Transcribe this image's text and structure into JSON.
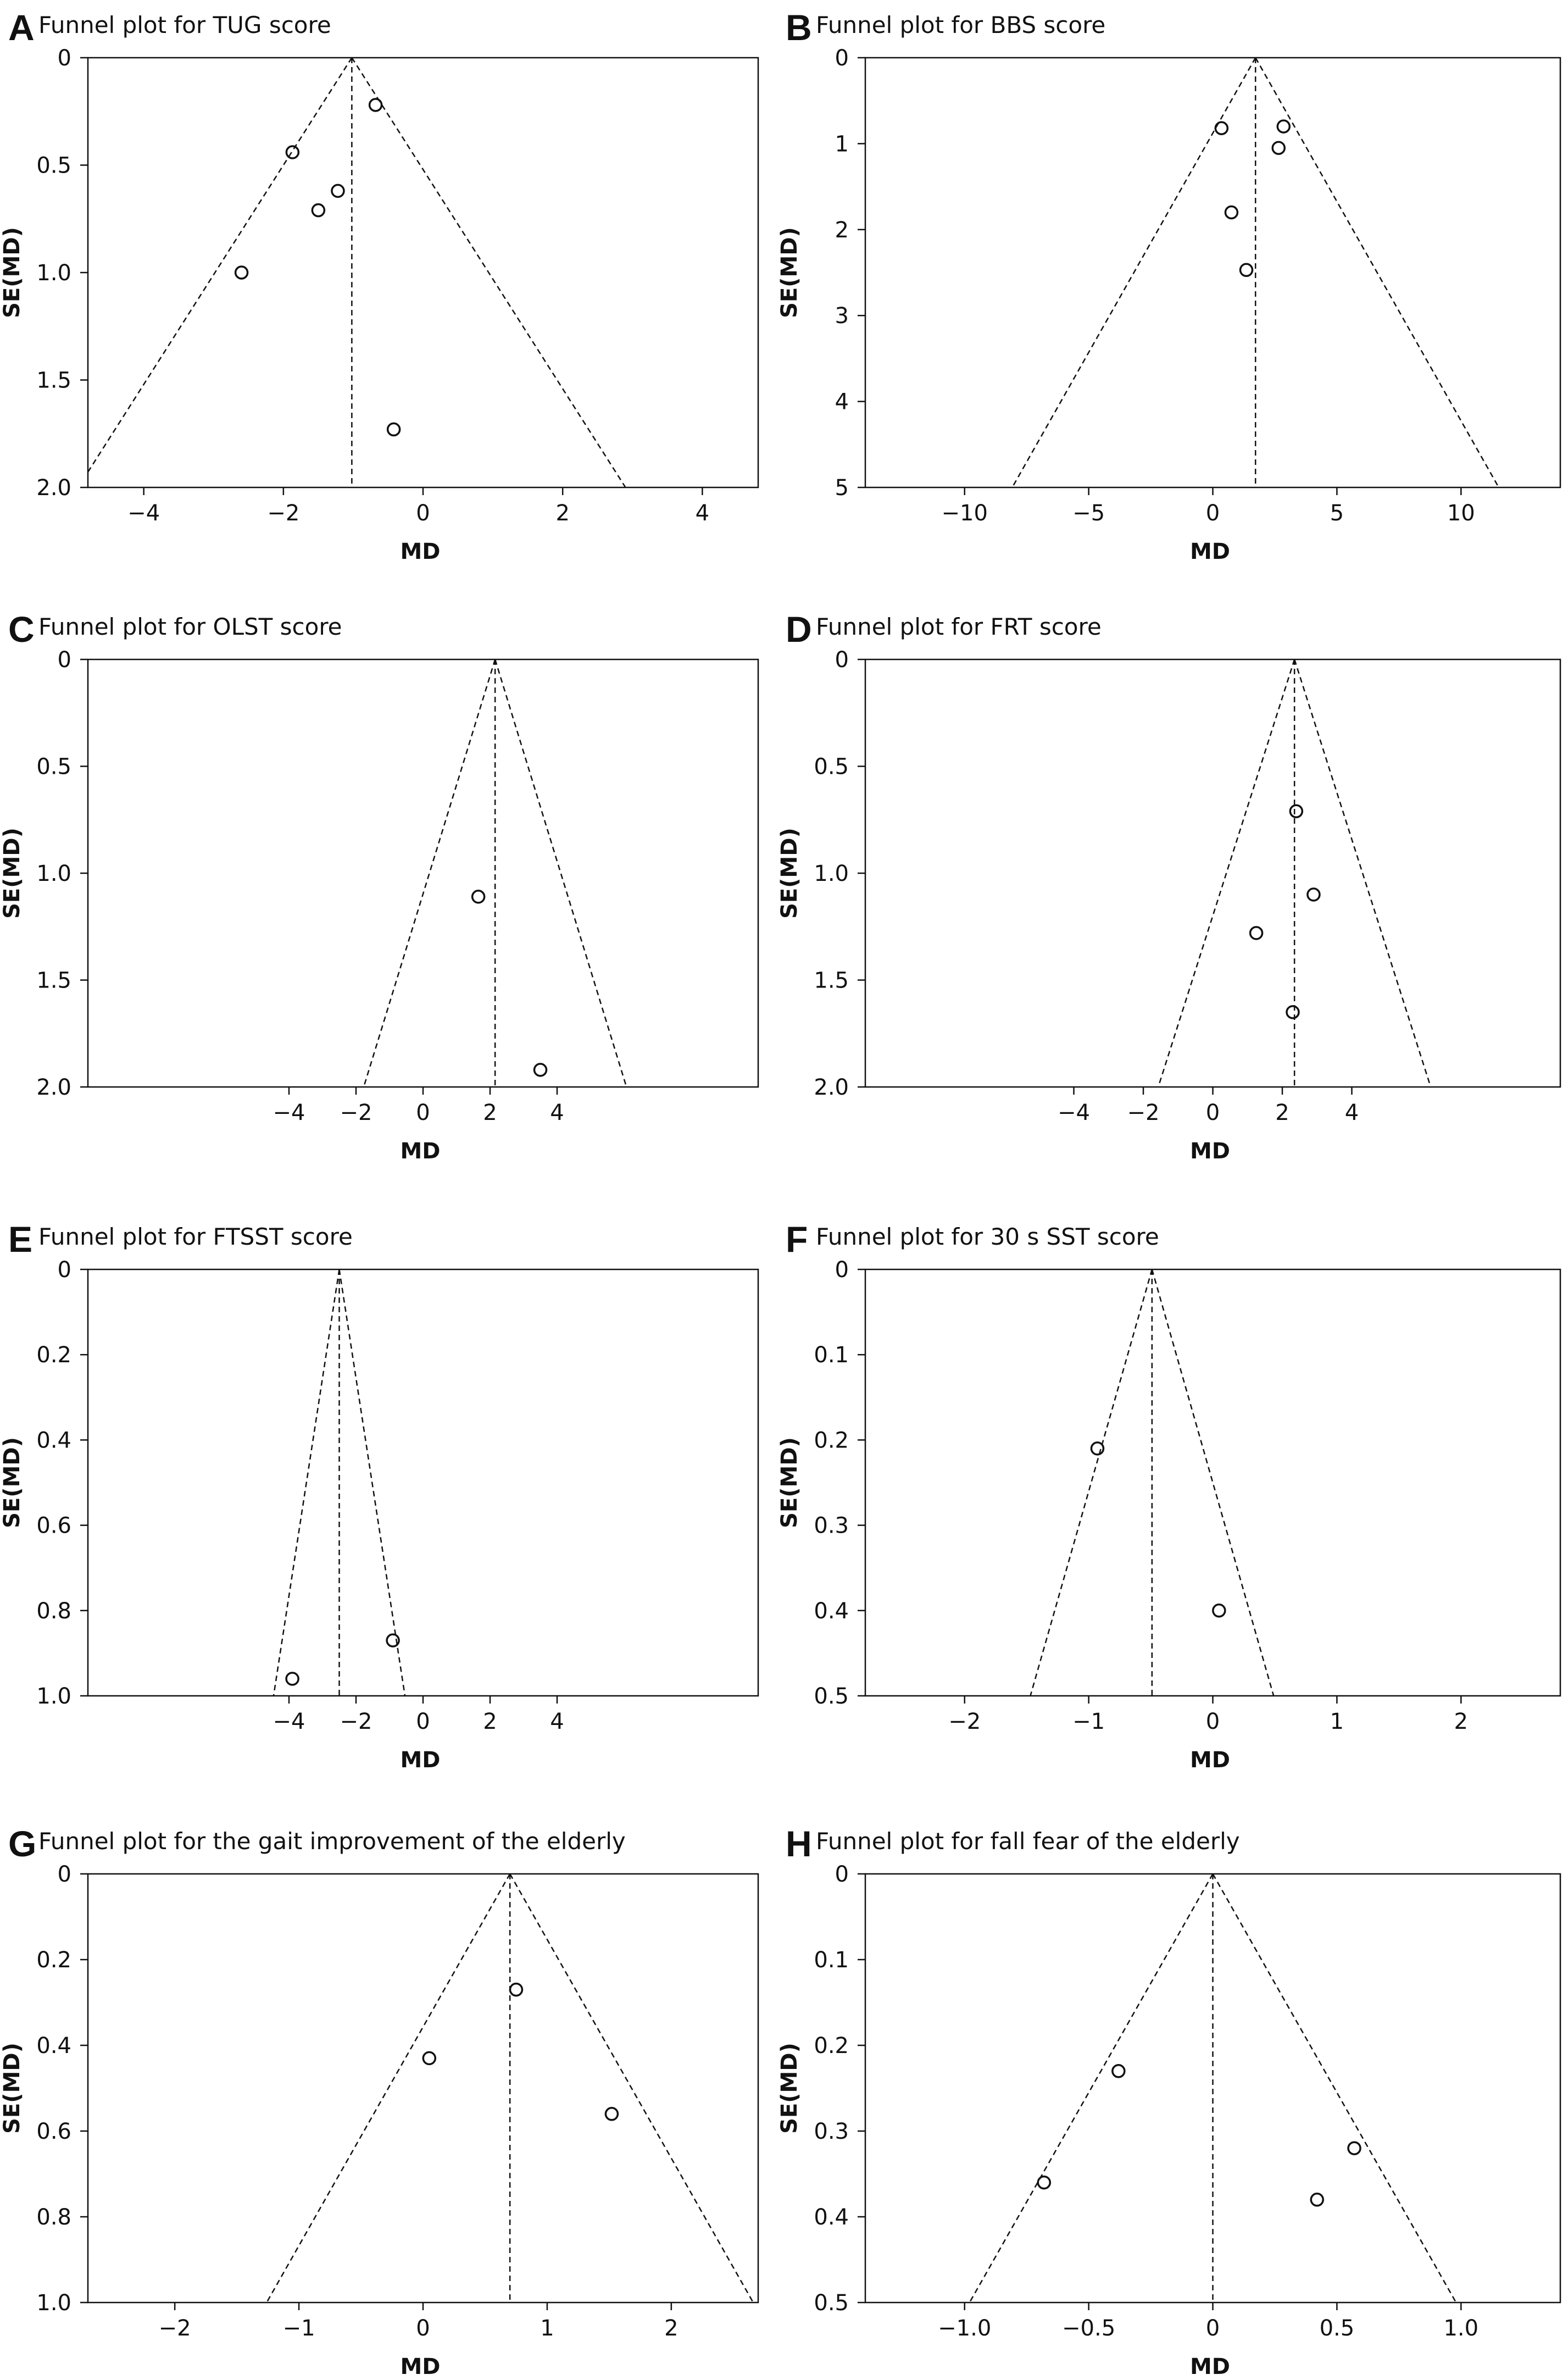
{
  "chart_data": [
    {
      "panel": "A",
      "type": "scatter",
      "title": "Funnel plot for TUG score",
      "xlabel": "MD",
      "ylabel": "SE(MD)",
      "xlim": [
        -4.8,
        4.8
      ],
      "ylim": [
        0,
        2.0
      ],
      "y_reversed": true,
      "xticks": [
        -4,
        -2,
        0,
        2,
        4
      ],
      "yticks": [
        0,
        0.5,
        1.0,
        1.5,
        2.0
      ],
      "ytick_labels": [
        "0",
        "0.5",
        "1.0",
        "1.5",
        "2.0"
      ],
      "xtick_labels": [
        "−4",
        "−2",
        "0",
        "2",
        "4"
      ],
      "center": -1.02,
      "funnel_se_max": 2.0,
      "points": [
        {
          "x": -0.68,
          "y": 0.22
        },
        {
          "x": -1.87,
          "y": 0.44
        },
        {
          "x": -1.22,
          "y": 0.62
        },
        {
          "x": -1.5,
          "y": 0.71
        },
        {
          "x": -2.6,
          "y": 1.0
        },
        {
          "x": -0.42,
          "y": 1.73
        }
      ]
    },
    {
      "panel": "B",
      "type": "scatter",
      "title": "Funnel plot for BBS score",
      "xlabel": "MD",
      "ylabel": "SE(MD)",
      "xlim": [
        -14,
        14
      ],
      "ylim": [
        0,
        5
      ],
      "y_reversed": true,
      "xticks": [
        -10,
        -5,
        0,
        5,
        10
      ],
      "yticks": [
        0,
        1,
        2,
        3,
        4,
        5
      ],
      "ytick_labels": [
        "0",
        "1",
        "2",
        "3",
        "4",
        "5"
      ],
      "xtick_labels": [
        "−10",
        "−5",
        "0",
        "5",
        "10"
      ],
      "center": 1.72,
      "funnel_se_max": 5,
      "points": [
        {
          "x": 0.35,
          "y": 0.82
        },
        {
          "x": 2.85,
          "y": 0.8
        },
        {
          "x": 2.65,
          "y": 1.05
        },
        {
          "x": 0.75,
          "y": 1.8
        },
        {
          "x": 1.35,
          "y": 2.47
        }
      ]
    },
    {
      "panel": "C",
      "type": "scatter",
      "title": "Funnel plot for OLST score",
      "xlabel": "MD",
      "ylabel": "SE(MD)",
      "xlim": [
        -10,
        10
      ],
      "ylim": [
        0,
        2.0
      ],
      "y_reversed": true,
      "xticks": [
        -4,
        -2,
        0,
        2,
        4
      ],
      "yticks": [
        0,
        0.5,
        1.0,
        1.5,
        2.0
      ],
      "ytick_labels": [
        "0",
        "0.5",
        "1.0",
        "1.5",
        "2.0"
      ],
      "xtick_labels": [
        "−4",
        "−2",
        "0",
        "2",
        "4"
      ],
      "center": 2.15,
      "funnel_se_max": 2.0,
      "points": [
        {
          "x": 1.65,
          "y": 1.11
        },
        {
          "x": 3.5,
          "y": 1.92
        }
      ]
    },
    {
      "panel": "D",
      "type": "scatter",
      "title": "Funnel plot for FRT score",
      "xlabel": "MD",
      "ylabel": "SE(MD)",
      "xlim": [
        -10,
        10
      ],
      "ylim": [
        0,
        2.0
      ],
      "y_reversed": true,
      "xticks": [
        -4,
        -2,
        0,
        2,
        4
      ],
      "yticks": [
        0,
        0.5,
        1.0,
        1.5,
        2.0
      ],
      "ytick_labels": [
        "0",
        "0.5",
        "1.0",
        "1.5",
        "2.0"
      ],
      "xtick_labels": [
        "−4",
        "−2",
        "0",
        "2",
        "4"
      ],
      "center": 2.35,
      "funnel_se_max": 2.0,
      "points": [
        {
          "x": 2.4,
          "y": 0.71
        },
        {
          "x": 2.9,
          "y": 1.1
        },
        {
          "x": 1.25,
          "y": 1.28
        },
        {
          "x": 2.3,
          "y": 1.65
        }
      ]
    },
    {
      "panel": "E",
      "type": "scatter",
      "title": "Funnel plot for FTSST score",
      "xlabel": "MD",
      "ylabel": "SE(MD)",
      "xlim": [
        -10,
        10
      ],
      "ylim": [
        0,
        1.0
      ],
      "y_reversed": true,
      "xticks": [
        -4,
        -2,
        0,
        2,
        4
      ],
      "yticks": [
        0,
        0.2,
        0.4,
        0.6,
        0.8,
        1.0
      ],
      "ytick_labels": [
        "0",
        "0.2",
        "0.4",
        "0.6",
        "0.8",
        "1.0"
      ],
      "xtick_labels": [
        "−4",
        "−2",
        "0",
        "2",
        "4"
      ],
      "center": -2.5,
      "funnel_se_max": 1.0,
      "points": [
        {
          "x": -0.9,
          "y": 0.87
        },
        {
          "x": -3.9,
          "y": 0.96
        }
      ]
    },
    {
      "panel": "F",
      "type": "scatter",
      "title": "Funnel plot for 30 s SST score",
      "xlabel": "MD",
      "ylabel": "SE(MD)",
      "xlim": [
        -2.8,
        2.8
      ],
      "ylim": [
        0,
        0.5
      ],
      "y_reversed": true,
      "xticks": [
        -2,
        -1,
        0,
        1,
        2
      ],
      "yticks": [
        0,
        0.1,
        0.2,
        0.3,
        0.4,
        0.5
      ],
      "ytick_labels": [
        "0",
        "0.1",
        "0.2",
        "0.3",
        "0.4",
        "0.5"
      ],
      "xtick_labels": [
        "−2",
        "−1",
        "0",
        "1",
        "2"
      ],
      "center": -0.49,
      "funnel_se_max": 0.5,
      "points": [
        {
          "x": -0.93,
          "y": 0.21
        },
        {
          "x": 0.05,
          "y": 0.4
        }
      ]
    },
    {
      "panel": "G",
      "type": "scatter",
      "title": "Funnel plot for the gait improvement of the elderly",
      "xlabel": "MD",
      "ylabel": "SE(MD)",
      "xlim": [
        -2.7,
        2.7
      ],
      "ylim": [
        0,
        1.0
      ],
      "y_reversed": true,
      "xticks": [
        -2,
        -1,
        0,
        1,
        2
      ],
      "yticks": [
        0,
        0.2,
        0.4,
        0.6,
        0.8,
        1.0
      ],
      "ytick_labels": [
        "0",
        "0.2",
        "0.4",
        "0.6",
        "0.8",
        "1.0"
      ],
      "xtick_labels": [
        "−2",
        "−1",
        "0",
        "1",
        "2"
      ],
      "center": 0.7,
      "funnel_se_max": 1.0,
      "points": [
        {
          "x": 0.75,
          "y": 0.27
        },
        {
          "x": 0.05,
          "y": 0.43
        },
        {
          "x": 1.52,
          "y": 0.56
        }
      ]
    },
    {
      "panel": "H",
      "type": "scatter",
      "title": "Funnel plot for fall fear of the elderly",
      "xlabel": "MD",
      "ylabel": "SE(MD)",
      "xlim": [
        -1.4,
        1.4
      ],
      "ylim": [
        0,
        0.5
      ],
      "y_reversed": true,
      "xticks": [
        -1.0,
        -0.5,
        0,
        0.5,
        1.0
      ],
      "yticks": [
        0,
        0.1,
        0.2,
        0.3,
        0.4,
        0.5
      ],
      "ytick_labels": [
        "0",
        "0.1",
        "0.2",
        "0.3",
        "0.4",
        "0.5"
      ],
      "xtick_labels": [
        "−1.0",
        "−0.5",
        "0",
        "0.5",
        "1.0"
      ],
      "center": 0.0,
      "funnel_se_max": 0.5,
      "points": [
        {
          "x": -0.38,
          "y": 0.23
        },
        {
          "x": 0.57,
          "y": 0.32
        },
        {
          "x": -0.68,
          "y": 0.36
        },
        {
          "x": 0.42,
          "y": 0.38
        }
      ]
    }
  ]
}
